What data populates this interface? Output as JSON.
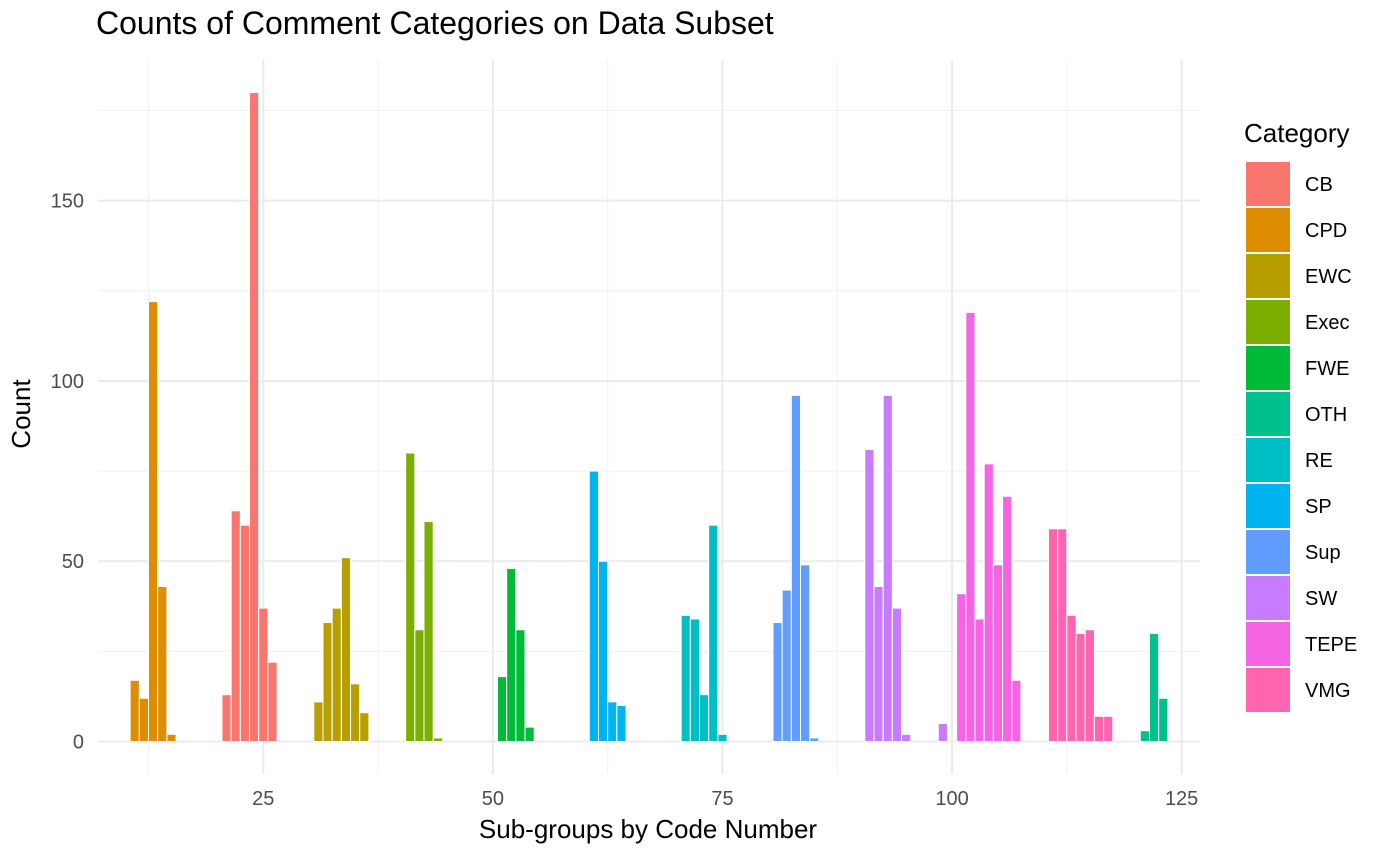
{
  "chart_data": {
    "type": "bar",
    "title": "Counts of Comment Categories on Data Subset",
    "xlabel": "Sub-groups by Code Number",
    "ylabel": "Count",
    "xlim": [
      7,
      127
    ],
    "ylim": [
      -9,
      189
    ],
    "x_ticks": [
      25,
      50,
      75,
      100,
      125
    ],
    "y_ticks": [
      0,
      50,
      100,
      150
    ],
    "grid": true,
    "legend": {
      "title": "Category",
      "position": "right",
      "items": [
        {
          "name": "CB",
          "color": "#F8766D"
        },
        {
          "name": "CPD",
          "color": "#DE8C00"
        },
        {
          "name": "EWC",
          "color": "#B79F00"
        },
        {
          "name": "Exec",
          "color": "#7CAE00"
        },
        {
          "name": "FWE",
          "color": "#00BA38"
        },
        {
          "name": "OTH",
          "color": "#00C08B"
        },
        {
          "name": "RE",
          "color": "#00BFC4"
        },
        {
          "name": "SP",
          "color": "#00B4F0"
        },
        {
          "name": "Sup",
          "color": "#619CFF"
        },
        {
          "name": "SW",
          "color": "#C77CFF"
        },
        {
          "name": "TEPE",
          "color": "#F564E3"
        },
        {
          "name": "VMG",
          "color": "#FF64B0"
        }
      ]
    },
    "bars": [
      {
        "x": 11,
        "y": 17,
        "category": "CPD"
      },
      {
        "x": 12,
        "y": 12,
        "category": "CPD"
      },
      {
        "x": 13,
        "y": 122,
        "category": "CPD"
      },
      {
        "x": 14,
        "y": 43,
        "category": "CPD"
      },
      {
        "x": 15,
        "y": 2,
        "category": "CPD"
      },
      {
        "x": 21,
        "y": 13,
        "category": "CB"
      },
      {
        "x": 22,
        "y": 64,
        "category": "CB"
      },
      {
        "x": 23,
        "y": 60,
        "category": "CB"
      },
      {
        "x": 24,
        "y": 180,
        "category": "CB"
      },
      {
        "x": 25,
        "y": 37,
        "category": "CB"
      },
      {
        "x": 26,
        "y": 22,
        "category": "CB"
      },
      {
        "x": 31,
        "y": 11,
        "category": "EWC"
      },
      {
        "x": 32,
        "y": 33,
        "category": "EWC"
      },
      {
        "x": 33,
        "y": 37,
        "category": "EWC"
      },
      {
        "x": 34,
        "y": 51,
        "category": "EWC"
      },
      {
        "x": 35,
        "y": 16,
        "category": "EWC"
      },
      {
        "x": 36,
        "y": 8,
        "category": "EWC"
      },
      {
        "x": 41,
        "y": 80,
        "category": "Exec"
      },
      {
        "x": 42,
        "y": 31,
        "category": "Exec"
      },
      {
        "x": 43,
        "y": 61,
        "category": "Exec"
      },
      {
        "x": 44,
        "y": 1,
        "category": "Exec"
      },
      {
        "x": 51,
        "y": 18,
        "category": "FWE"
      },
      {
        "x": 52,
        "y": 48,
        "category": "FWE"
      },
      {
        "x": 53,
        "y": 31,
        "category": "FWE"
      },
      {
        "x": 54,
        "y": 4,
        "category": "FWE"
      },
      {
        "x": 61,
        "y": 75,
        "category": "SP"
      },
      {
        "x": 62,
        "y": 50,
        "category": "SP"
      },
      {
        "x": 63,
        "y": 11,
        "category": "SP"
      },
      {
        "x": 64,
        "y": 10,
        "category": "SP"
      },
      {
        "x": 71,
        "y": 35,
        "category": "RE"
      },
      {
        "x": 72,
        "y": 34,
        "category": "RE"
      },
      {
        "x": 73,
        "y": 13,
        "category": "RE"
      },
      {
        "x": 74,
        "y": 60,
        "category": "RE"
      },
      {
        "x": 75,
        "y": 2,
        "category": "RE"
      },
      {
        "x": 81,
        "y": 33,
        "category": "Sup"
      },
      {
        "x": 82,
        "y": 42,
        "category": "Sup"
      },
      {
        "x": 83,
        "y": 96,
        "category": "Sup"
      },
      {
        "x": 84,
        "y": 49,
        "category": "Sup"
      },
      {
        "x": 85,
        "y": 1,
        "category": "Sup"
      },
      {
        "x": 91,
        "y": 81,
        "category": "SW"
      },
      {
        "x": 92,
        "y": 43,
        "category": "SW"
      },
      {
        "x": 93,
        "y": 96,
        "category": "SW"
      },
      {
        "x": 94,
        "y": 37,
        "category": "SW"
      },
      {
        "x": 95,
        "y": 2,
        "category": "SW"
      },
      {
        "x": 99,
        "y": 5,
        "category": "SW"
      },
      {
        "x": 101,
        "y": 41,
        "category": "TEPE"
      },
      {
        "x": 102,
        "y": 119,
        "category": "TEPE"
      },
      {
        "x": 103,
        "y": 34,
        "category": "TEPE"
      },
      {
        "x": 104,
        "y": 77,
        "category": "TEPE"
      },
      {
        "x": 105,
        "y": 49,
        "category": "TEPE"
      },
      {
        "x": 106,
        "y": 68,
        "category": "TEPE"
      },
      {
        "x": 107,
        "y": 17,
        "category": "TEPE"
      },
      {
        "x": 111,
        "y": 59,
        "category": "VMG"
      },
      {
        "x": 112,
        "y": 59,
        "category": "VMG"
      },
      {
        "x": 113,
        "y": 35,
        "category": "VMG"
      },
      {
        "x": 114,
        "y": 30,
        "category": "VMG"
      },
      {
        "x": 115,
        "y": 31,
        "category": "VMG"
      },
      {
        "x": 116,
        "y": 7,
        "category": "VMG"
      },
      {
        "x": 117,
        "y": 7,
        "category": "VMG"
      },
      {
        "x": 121,
        "y": 3,
        "category": "OTH"
      },
      {
        "x": 122,
        "y": 30,
        "category": "OTH"
      },
      {
        "x": 123,
        "y": 12,
        "category": "OTH"
      }
    ]
  }
}
